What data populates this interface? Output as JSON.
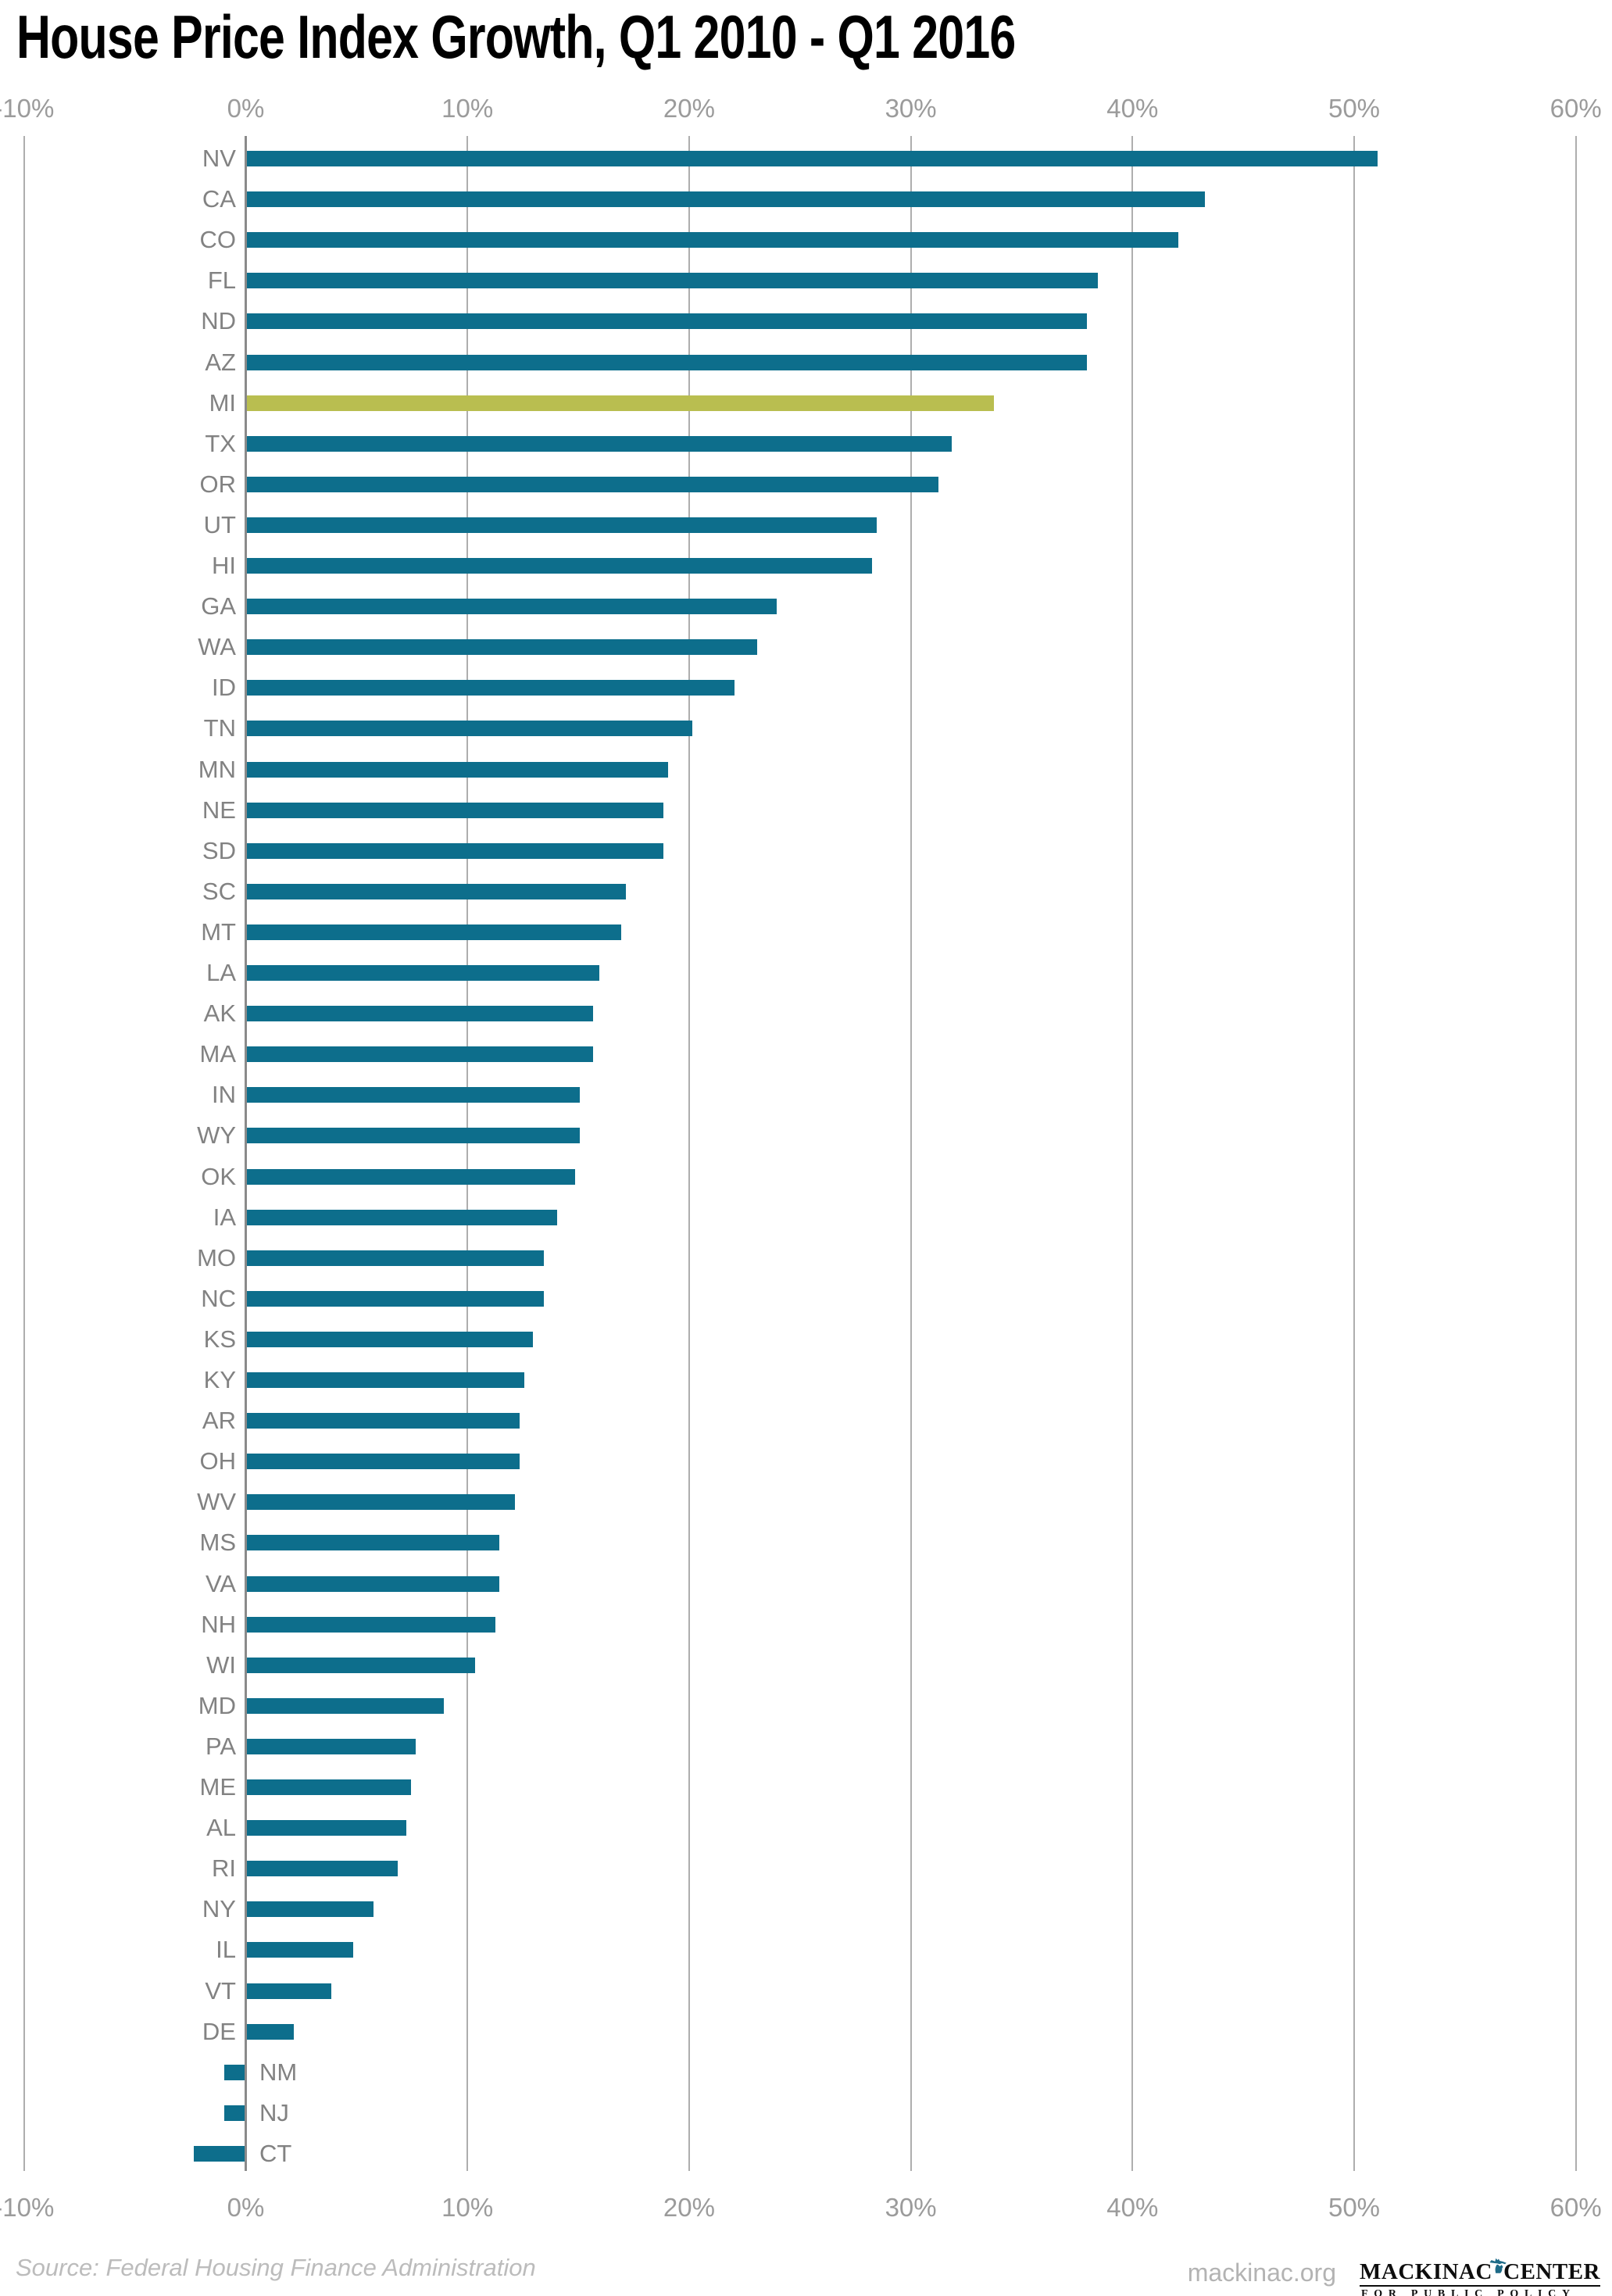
{
  "title": "House Price Index Growth, Q1 2010 - Q1 2016",
  "source_note": "Source: Federal Housing Finance Administration",
  "footer": {
    "website": "mackinac.org",
    "logo": {
      "word_left": "MACKINAC",
      "word_right": "CENTER",
      "tagline": "FOR PUBLIC POLICY",
      "icon": "michigan-state-icon"
    }
  },
  "colors": {
    "bar": "#0d6e8c",
    "highlight": "#b9be50",
    "gridline": "#aeaeae",
    "zero_axis": "#8a8a8a",
    "state_label": "#828282",
    "tick_label": "#9b9b9b",
    "source_text": "#bcbcbc",
    "website_text": "#b3b3b3",
    "logo_teal": "#1d6a87"
  },
  "chart_data": {
    "type": "bar",
    "orientation": "horizontal",
    "title": "House Price Index Growth, Q1 2010 - Q1 2016",
    "unit": "percent",
    "xlim": [
      -10,
      60
    ],
    "grid": true,
    "x_tick_labels": [
      "-10%",
      "0%",
      "10%",
      "20%",
      "30%",
      "40%",
      "50%",
      "60%"
    ],
    "x_tick_values": [
      -10,
      0,
      10,
      20,
      30,
      40,
      50,
      60
    ],
    "highlighted_category": "MI",
    "categories": [
      "NV",
      "CA",
      "CO",
      "FL",
      "ND",
      "AZ",
      "MI",
      "TX",
      "OR",
      "UT",
      "HI",
      "GA",
      "WA",
      "ID",
      "TN",
      "MN",
      "NE",
      "SD",
      "SC",
      "MT",
      "LA",
      "AK",
      "MA",
      "IN",
      "WY",
      "OK",
      "IA",
      "MO",
      "NC",
      "KS",
      "KY",
      "AR",
      "OH",
      "WV",
      "MS",
      "VA",
      "NH",
      "WI",
      "MD",
      "PA",
      "ME",
      "AL",
      "RI",
      "NY",
      "IL",
      "VT",
      "DE",
      "NM",
      "NJ",
      "CT"
    ],
    "values": [
      51.0,
      43.2,
      42.0,
      38.4,
      37.9,
      37.9,
      33.7,
      31.8,
      31.2,
      28.4,
      28.2,
      23.9,
      23.0,
      22.0,
      20.1,
      19.0,
      18.8,
      18.8,
      17.1,
      16.9,
      15.9,
      15.6,
      15.6,
      15.0,
      15.0,
      14.8,
      14.0,
      13.4,
      13.4,
      12.9,
      12.5,
      12.3,
      12.3,
      12.1,
      11.4,
      11.4,
      11.2,
      10.3,
      8.9,
      7.6,
      7.4,
      7.2,
      6.8,
      5.7,
      4.8,
      3.8,
      2.1,
      -0.9,
      -0.9,
      -2.3
    ]
  }
}
